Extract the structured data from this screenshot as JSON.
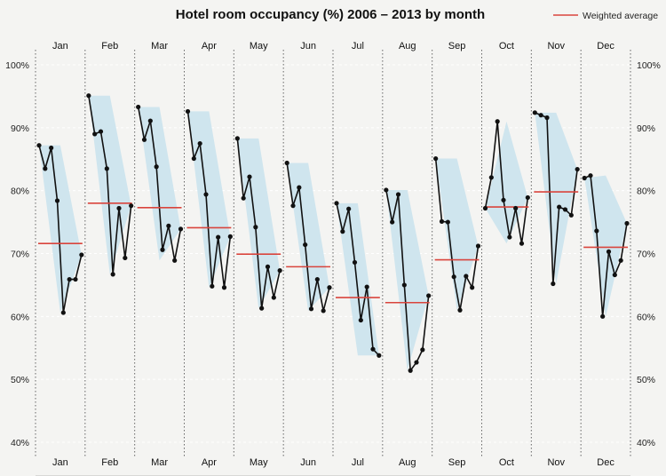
{
  "chart_data": {
    "type": "line",
    "title": "Hotel room occupancy (%) 2006 – 2013 by month",
    "legend": {
      "label": "Weighted average",
      "position": "top-right"
    },
    "y_ticks": [
      "40%",
      "50%",
      "60%",
      "70%",
      "80%",
      "90%",
      "100%"
    ],
    "ylim": [
      40,
      100
    ],
    "colors": {
      "band": "#cfe5ee",
      "line": "#111111",
      "average": "#d9443c",
      "divider": "#666666",
      "grid": "#ffffff"
    },
    "months": [
      {
        "label": "Jan",
        "values": [
          87.2,
          83.5,
          86.8,
          78.4,
          60.6,
          65.9,
          65.9,
          69.8
        ],
        "average": 71.6
      },
      {
        "label": "Feb",
        "values": [
          95.1,
          89.0,
          89.4,
          83.5,
          66.7,
          77.2,
          69.3,
          77.6
        ],
        "average": 78.0
      },
      {
        "label": "Mar",
        "values": [
          93.3,
          88.1,
          91.1,
          83.8,
          70.6,
          74.4,
          68.9,
          73.9
        ],
        "average": 77.3
      },
      {
        "label": "Apr",
        "values": [
          92.6,
          85.1,
          87.5,
          79.4,
          64.8,
          72.6,
          64.6,
          72.7
        ],
        "average": 74.1
      },
      {
        "label": "May",
        "values": [
          88.3,
          78.8,
          82.2,
          74.2,
          61.3,
          67.9,
          63.0,
          67.3
        ],
        "average": 69.9
      },
      {
        "label": "Jun",
        "values": [
          84.4,
          77.6,
          80.5,
          71.4,
          61.2,
          65.9,
          60.9,
          64.6
        ],
        "average": 67.9
      },
      {
        "label": "Jul",
        "values": [
          78.0,
          73.5,
          77.1,
          68.6,
          59.4,
          64.7,
          54.8,
          53.8
        ],
        "average": 63.0
      },
      {
        "label": "Aug",
        "values": [
          80.1,
          75.0,
          79.4,
          65.0,
          51.4,
          52.7,
          54.7,
          63.3
        ],
        "average": 62.2
      },
      {
        "label": "Sep",
        "values": [
          85.1,
          75.1,
          75.0,
          66.3,
          61.0,
          66.4,
          64.6,
          71.2
        ],
        "average": 69.0
      },
      {
        "label": "Oct",
        "values": [
          77.2,
          82.1,
          91.0,
          78.5,
          72.6,
          77.2,
          71.6,
          78.9
        ],
        "average": 77.4
      },
      {
        "label": "Nov",
        "values": [
          92.4,
          92.0,
          91.6,
          65.2,
          77.4,
          77.0,
          76.1,
          83.4
        ],
        "average": 79.8
      },
      {
        "label": "Dec",
        "values": [
          82.0,
          82.4,
          73.6,
          60.0,
          70.3,
          66.6,
          68.9,
          74.8
        ],
        "average": 71.0
      }
    ]
  }
}
